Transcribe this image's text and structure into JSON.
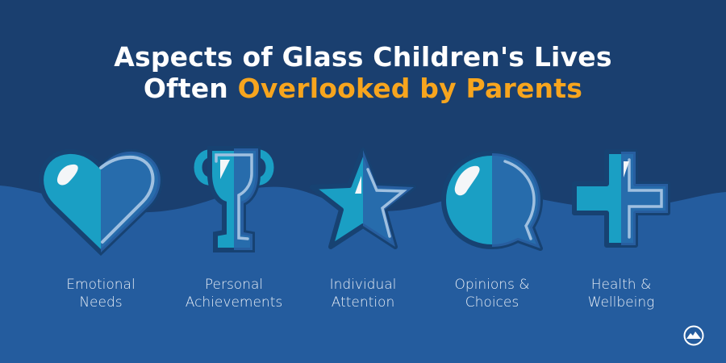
{
  "title": {
    "line1": "Aspects of Glass Children's Lives",
    "line2_plain": "Often ",
    "line2_highlight": "Overlooked by Parents"
  },
  "colors": {
    "background_top": "#1a3f6f",
    "background_wave": "#245c9e",
    "highlight": "#f7a51e",
    "icon_teal": "#1a9fc4",
    "icon_blue": "#2a63a8"
  },
  "items": [
    {
      "icon": "heart-icon",
      "line1": "Emotional",
      "line2": "Needs"
    },
    {
      "icon": "trophy-icon",
      "line1": "Personal",
      "line2": "Achievements"
    },
    {
      "icon": "star-icon",
      "line1": "Individual",
      "line2": "Attention"
    },
    {
      "icon": "speech-bubble-icon",
      "line1": "Opinions &",
      "line2": "Choices"
    },
    {
      "icon": "plus-cross-icon",
      "line1": "Health &",
      "line2": "Wellbeing"
    }
  ],
  "logo": {
    "icon": "mountain-logo-icon"
  }
}
